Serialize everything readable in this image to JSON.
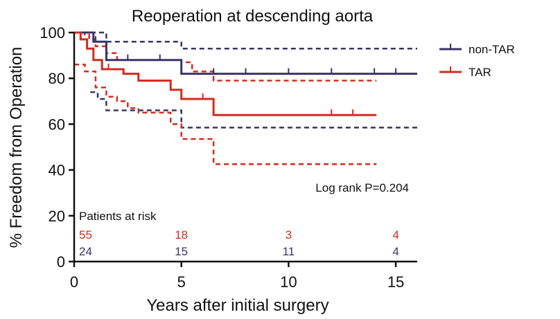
{
  "chart_data": {
    "type": "line",
    "title": "Reoperation at descending aorta",
    "xlabel": "Years after initial surgery",
    "ylabel": "% Freedom from Operation",
    "xlim": [
      0,
      16
    ],
    "ylim": [
      0,
      100
    ],
    "x_ticks": [
      0,
      5,
      10,
      15
    ],
    "y_ticks": [
      0,
      20,
      40,
      60,
      80,
      100
    ],
    "grid": false,
    "legend_position": "top-right",
    "annotation": "Log rank P=0.204",
    "colors": {
      "non_tar": "#3b3168",
      "tar": "#d42b1e"
    },
    "series": [
      {
        "name": "non-TAR",
        "color": "#3b3168",
        "steps": [
          [
            0,
            100
          ],
          [
            0.9,
            96
          ],
          [
            1.5,
            88
          ],
          [
            5,
            82
          ],
          [
            16,
            82
          ]
        ],
        "ci_upper": [
          [
            0,
            100
          ],
          [
            1.5,
            96
          ],
          [
            5,
            93
          ],
          [
            16,
            93
          ]
        ],
        "ci_lower": [
          [
            0.75,
            74
          ],
          [
            1.1,
            71
          ],
          [
            1.5,
            66
          ],
          [
            5,
            58.5
          ],
          [
            16,
            58.5
          ]
        ],
        "censor_x": [
          1,
          2.5,
          4,
          6.5,
          8,
          10,
          12,
          14,
          15
        ]
      },
      {
        "name": "TAR",
        "color": "#d42b1e",
        "steps": [
          [
            0,
            100
          ],
          [
            0.3,
            97
          ],
          [
            0.6,
            93
          ],
          [
            0.9,
            88
          ],
          [
            1.3,
            84
          ],
          [
            2.3,
            82
          ],
          [
            3,
            79
          ],
          [
            4.5,
            75
          ],
          [
            5,
            71
          ],
          [
            6.5,
            64
          ],
          [
            14.1,
            64
          ]
        ],
        "ci_upper": [
          [
            0,
            100
          ],
          [
            0.5,
            99
          ],
          [
            0.7,
            97
          ],
          [
            1,
            94
          ],
          [
            1.5,
            91
          ],
          [
            2,
            88
          ],
          [
            5,
            87
          ],
          [
            5.5,
            83
          ],
          [
            6.5,
            79
          ],
          [
            14.1,
            79
          ]
        ],
        "ci_lower": [
          [
            0,
            86
          ],
          [
            0.5,
            83
          ],
          [
            1,
            76
          ],
          [
            1.5,
            72
          ],
          [
            2,
            70
          ],
          [
            2.5,
            67
          ],
          [
            3,
            65
          ],
          [
            4.5,
            60
          ],
          [
            5,
            53.5
          ],
          [
            6.5,
            42.5
          ],
          [
            14.1,
            42.5
          ]
        ],
        "censor_x": [
          1.6,
          6,
          12,
          13
        ]
      }
    ],
    "risk_table": {
      "title": "Patients at risk",
      "x": [
        0,
        5,
        10,
        15
      ],
      "rows": [
        {
          "series": "TAR",
          "color": "#d42b1e",
          "values": [
            "55",
            "18",
            "3",
            "4"
          ]
        },
        {
          "series": "non-TAR",
          "color": "#3b3168",
          "values": [
            "24",
            "15",
            "11",
            "4"
          ]
        }
      ]
    }
  }
}
